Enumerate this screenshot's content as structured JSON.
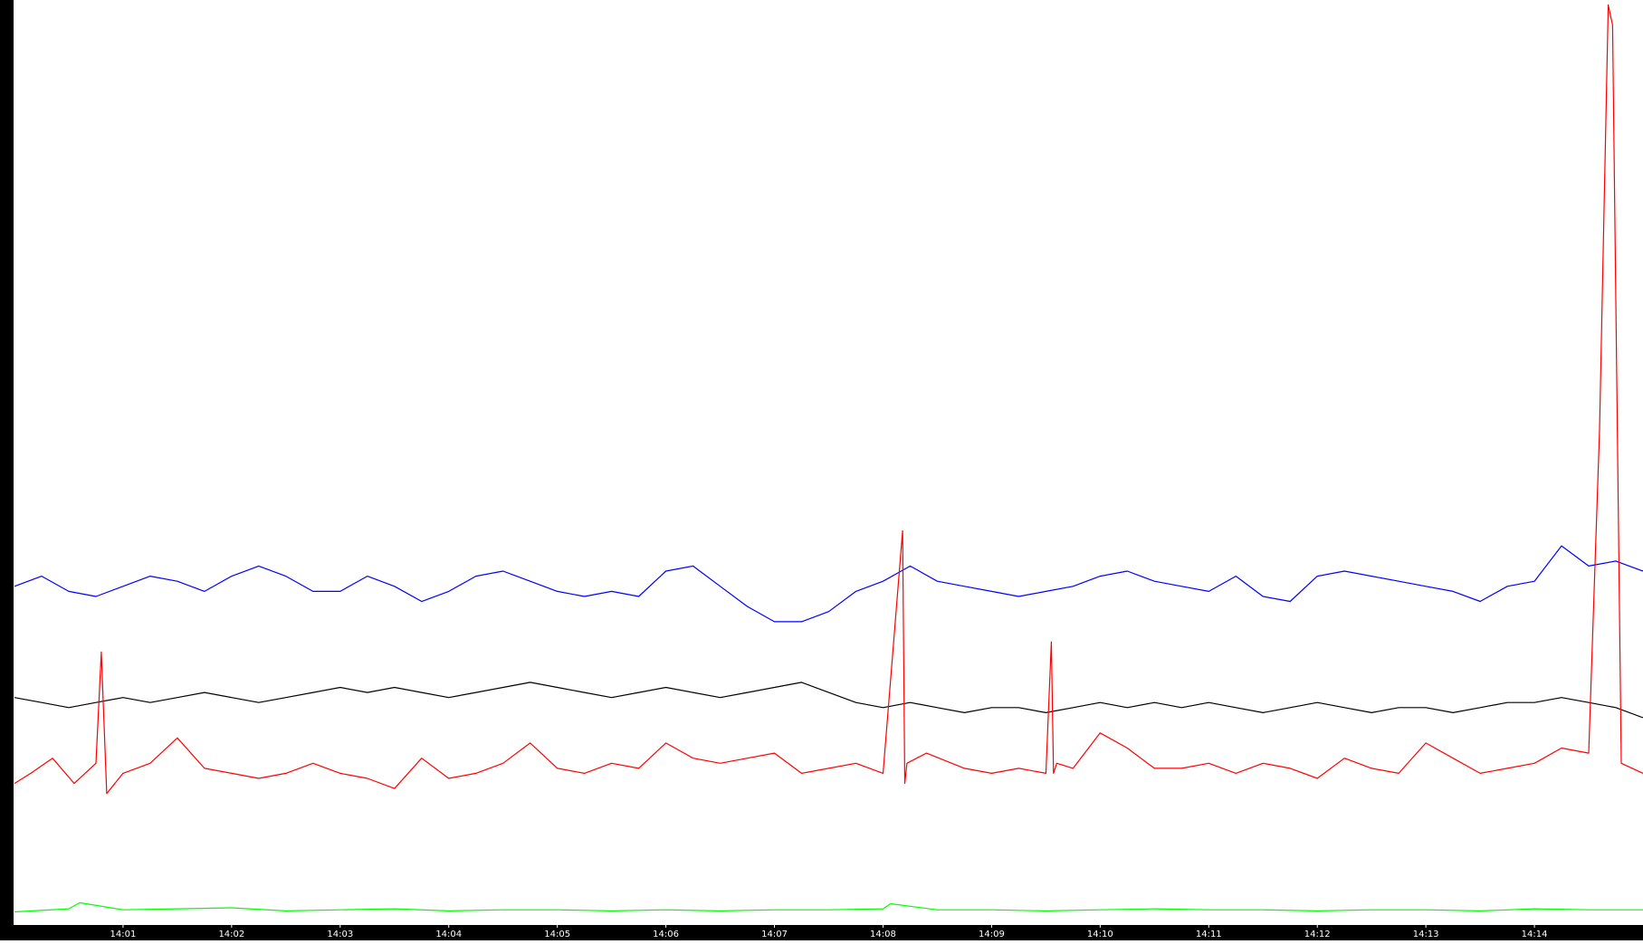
{
  "chart_data": {
    "type": "line",
    "title": "",
    "xlabel": "",
    "ylabel": "",
    "ylim": [
      0,
      9131
    ],
    "y_ticks": [
      "0",
      "913",
      "1826",
      "2739",
      "3652",
      "4565",
      "5478",
      "6391",
      "7304",
      "8217",
      "9131"
    ],
    "x_range_minutes": [
      0,
      15
    ],
    "x_ticks": [
      {
        "label": "14:01",
        "minute": 1
      },
      {
        "label": "14:02",
        "minute": 2
      },
      {
        "label": "14:03",
        "minute": 3
      },
      {
        "label": "14:04",
        "minute": 4
      },
      {
        "label": "14:05",
        "minute": 5
      },
      {
        "label": "14:06",
        "minute": 6
      },
      {
        "label": "14:07",
        "minute": 7
      },
      {
        "label": "14:08",
        "minute": 8
      },
      {
        "label": "14:09",
        "minute": 9
      },
      {
        "label": "14:10",
        "minute": 10
      },
      {
        "label": "14:11",
        "minute": 11
      },
      {
        "label": "14:12",
        "minute": 12
      },
      {
        "label": "14:13",
        "minute": 13
      },
      {
        "label": "14:14",
        "minute": 14
      }
    ],
    "grid": false,
    "legend": "none",
    "series": [
      {
        "color": "#0000ff",
        "x": [
          0,
          0.25,
          0.5,
          0.75,
          1,
          1.25,
          1.5,
          1.75,
          2,
          2.25,
          2.5,
          2.75,
          3,
          3.25,
          3.5,
          3.75,
          4,
          4.25,
          4.5,
          4.75,
          5,
          5.25,
          5.5,
          5.75,
          6,
          6.25,
          6.5,
          6.75,
          7,
          7.25,
          7.5,
          7.75,
          8,
          8.25,
          8.5,
          8.75,
          9,
          9.25,
          9.5,
          9.75,
          10,
          10.25,
          10.5,
          10.75,
          11,
          11.25,
          11.5,
          11.75,
          12,
          12.25,
          12.5,
          12.75,
          13,
          13.25,
          13.5,
          13.75,
          14,
          14.25,
          14.5,
          14.75,
          15
        ],
        "y": [
          3350,
          3450,
          3300,
          3250,
          3350,
          3450,
          3400,
          3300,
          3450,
          3550,
          3450,
          3300,
          3300,
          3450,
          3350,
          3200,
          3300,
          3450,
          3500,
          3400,
          3300,
          3250,
          3300,
          3250,
          3500,
          3550,
          3350,
          3150,
          3000,
          3000,
          3100,
          3300,
          3400,
          3550,
          3400,
          3350,
          3300,
          3250,
          3300,
          3350,
          3450,
          3500,
          3400,
          3350,
          3300,
          3450,
          3250,
          3200,
          3450,
          3500,
          3450,
          3400,
          3350,
          3300,
          3200,
          3350,
          3400,
          3750,
          3550,
          3600,
          3500
        ]
      },
      {
        "color": "#000000",
        "x": [
          0,
          0.25,
          0.5,
          0.75,
          1,
          1.25,
          1.5,
          1.75,
          2,
          2.25,
          2.5,
          2.75,
          3,
          3.25,
          3.5,
          3.75,
          4,
          4.25,
          4.5,
          4.75,
          5,
          5.25,
          5.5,
          5.75,
          6,
          6.25,
          6.5,
          6.75,
          7,
          7.25,
          7.5,
          7.75,
          8,
          8.25,
          8.5,
          8.75,
          9,
          9.25,
          9.5,
          9.75,
          10,
          10.25,
          10.5,
          10.75,
          11,
          11.25,
          11.5,
          11.75,
          12,
          12.25,
          12.5,
          12.75,
          13,
          13.25,
          13.5,
          13.75,
          14,
          14.25,
          14.5,
          14.75,
          15
        ],
        "y": [
          2250,
          2200,
          2150,
          2200,
          2250,
          2200,
          2250,
          2300,
          2250,
          2200,
          2250,
          2300,
          2350,
          2300,
          2350,
          2300,
          2250,
          2300,
          2350,
          2400,
          2350,
          2300,
          2250,
          2300,
          2350,
          2300,
          2250,
          2300,
          2350,
          2400,
          2300,
          2200,
          2150,
          2200,
          2150,
          2100,
          2150,
          2150,
          2100,
          2150,
          2200,
          2150,
          2200,
          2150,
          2200,
          2150,
          2100,
          2150,
          2200,
          2150,
          2100,
          2150,
          2150,
          2100,
          2150,
          2200,
          2200,
          2250,
          2200,
          2150,
          2050
        ]
      },
      {
        "color": "#ff0000",
        "x": [
          0,
          0.15,
          0.35,
          0.55,
          0.75,
          0.8,
          0.85,
          1,
          1.25,
          1.5,
          1.75,
          2,
          2.25,
          2.5,
          2.75,
          3,
          3.25,
          3.5,
          3.75,
          4,
          4.25,
          4.5,
          4.75,
          5,
          5.25,
          5.5,
          5.75,
          6,
          6.25,
          6.5,
          6.75,
          7,
          7.25,
          7.5,
          7.75,
          8,
          8.18,
          8.2,
          8.22,
          8.4,
          8.75,
          9,
          9.25,
          9.5,
          9.55,
          9.57,
          9.6,
          9.75,
          10,
          10.25,
          10.5,
          10.75,
          11,
          11.25,
          11.5,
          11.75,
          12,
          12.25,
          12.5,
          12.75,
          13,
          13.25,
          13.5,
          13.75,
          14,
          14.25,
          14.5,
          14.6,
          14.68,
          14.72,
          14.8,
          15
        ],
        "y": [
          1400,
          1500,
          1650,
          1400,
          1600,
          2700,
          1300,
          1500,
          1600,
          1850,
          1550,
          1500,
          1450,
          1500,
          1600,
          1500,
          1450,
          1350,
          1650,
          1450,
          1500,
          1600,
          1800,
          1550,
          1500,
          1600,
          1550,
          1800,
          1650,
          1600,
          1650,
          1700,
          1500,
          1550,
          1600,
          1500,
          3900,
          1400,
          1600,
          1700,
          1550,
          1500,
          1550,
          1500,
          2800,
          1500,
          1600,
          1550,
          1900,
          1750,
          1550,
          1550,
          1600,
          1500,
          1600,
          1550,
          1450,
          1650,
          1550,
          1500,
          1800,
          1650,
          1500,
          1550,
          1600,
          1750,
          1700,
          4900,
          9100,
          8900,
          1600,
          1500
        ]
      },
      {
        "color": "#00ff00",
        "x": [
          0,
          0.5,
          0.6,
          1,
          1.5,
          2,
          2.5,
          3,
          3.5,
          4,
          4.5,
          5,
          5.5,
          6,
          6.5,
          7,
          7.5,
          8,
          8.07,
          8.5,
          9,
          9.5,
          10,
          10.5,
          11,
          11.5,
          12,
          12.5,
          13,
          13.5,
          14,
          14.5,
          15
        ],
        "y": [
          130,
          160,
          220,
          150,
          160,
          170,
          140,
          150,
          160,
          140,
          150,
          150,
          140,
          150,
          140,
          150,
          150,
          160,
          210,
          150,
          150,
          140,
          150,
          160,
          150,
          150,
          140,
          150,
          150,
          140,
          160,
          150,
          150
        ]
      }
    ]
  }
}
